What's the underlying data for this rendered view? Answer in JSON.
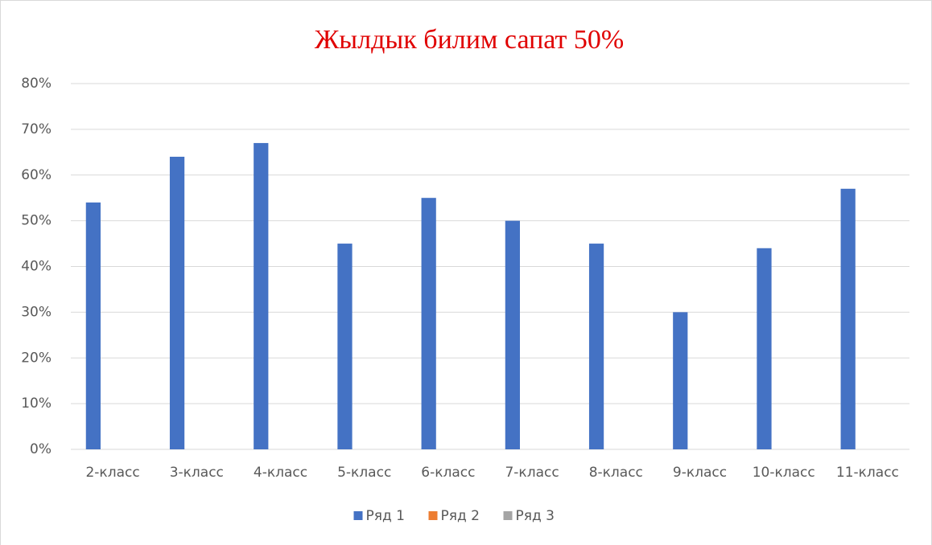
{
  "chart_data": {
    "type": "bar",
    "title": "Жылдык билим сапат 50%",
    "categories": [
      "2-класс",
      "3-класс",
      "4-класс",
      "5-класс",
      "6-класс",
      "7-класс",
      "8-класс",
      "9-класс",
      "10-класс",
      "11-класс"
    ],
    "series": [
      {
        "name": "Ряд 1",
        "color": "#4472c4",
        "values": [
          54,
          64,
          67,
          45,
          55,
          50,
          45,
          30,
          44,
          57
        ]
      },
      {
        "name": "Ряд 2",
        "color": "#ed7d31",
        "values": [
          null,
          null,
          null,
          null,
          null,
          null,
          null,
          null,
          null,
          null
        ]
      },
      {
        "name": "Ряд 3",
        "color": "#a5a5a5",
        "values": [
          null,
          null,
          null,
          null,
          null,
          null,
          null,
          null,
          null,
          null
        ]
      }
    ],
    "ylim": [
      0,
      80
    ],
    "yticks": [
      {
        "value": 0,
        "label": "0%"
      },
      {
        "value": 10,
        "label": "10%"
      },
      {
        "value": 20,
        "label": "20%"
      },
      {
        "value": 30,
        "label": "30%"
      },
      {
        "value": 40,
        "label": "40%"
      },
      {
        "value": 50,
        "label": "50%"
      },
      {
        "value": 60,
        "label": "60%"
      },
      {
        "value": 70,
        "label": "70%"
      },
      {
        "value": 80,
        "label": "80%"
      }
    ],
    "grid": true,
    "legend": "bottom"
  }
}
